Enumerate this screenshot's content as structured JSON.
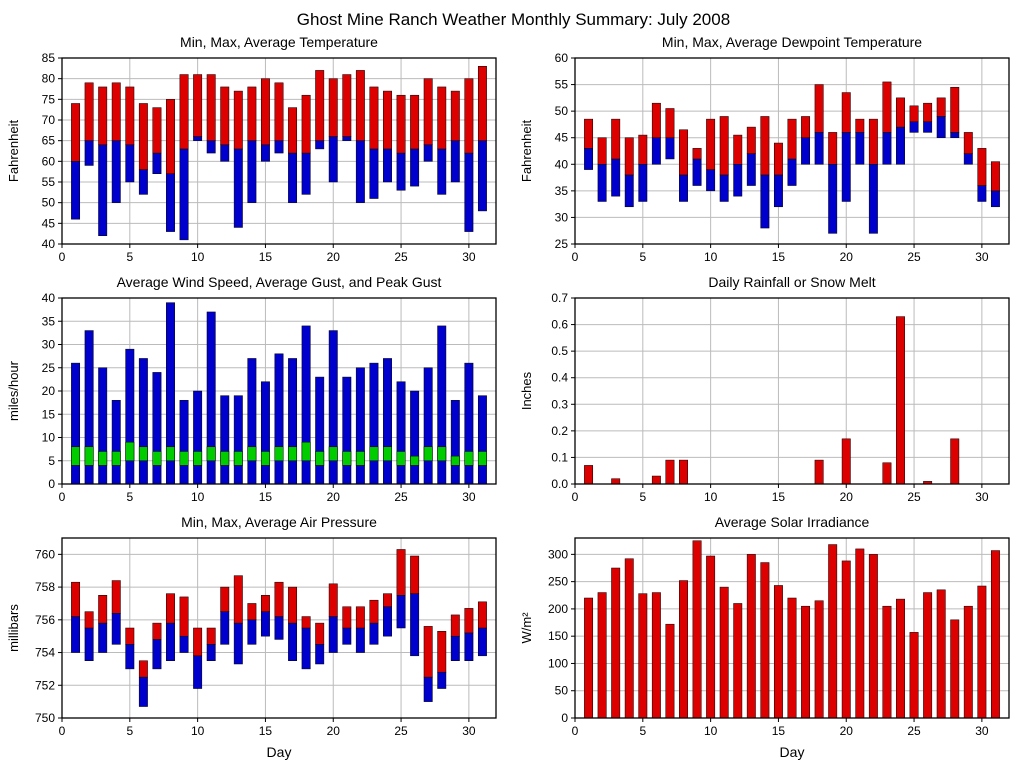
{
  "page": {
    "title": "Ghost Mine Ranch Weather Monthly Summary: July 2008"
  },
  "colors": {
    "red": "#dd0000",
    "blue": "#0000cc",
    "green": "#00cc00",
    "grid": "#bbbbbb",
    "axis": "#000000"
  },
  "chart_data": {
    "x_days": [
      1,
      2,
      3,
      4,
      5,
      6,
      7,
      8,
      9,
      10,
      11,
      12,
      13,
      14,
      15,
      16,
      17,
      18,
      19,
      20,
      21,
      22,
      23,
      24,
      25,
      26,
      27,
      28,
      29,
      30,
      31
    ],
    "charts": [
      {
        "type": "range",
        "title": "Min, Max, Average Temperature",
        "ylabel": "Fahrenheit",
        "xlabel": "",
        "ylim": [
          40,
          85
        ],
        "yticks": [
          40,
          45,
          50,
          55,
          60,
          65,
          70,
          75,
          80,
          85
        ],
        "xlim": [
          0,
          32
        ],
        "xticks": [
          0,
          5,
          10,
          15,
          20,
          25,
          30
        ],
        "ydecimals": 0,
        "data": {
          "min": [
            46,
            59,
            42,
            50,
            55,
            52,
            57,
            43,
            41,
            65,
            62,
            60,
            44,
            50,
            60,
            62,
            50,
            52,
            63,
            55,
            65,
            50,
            51,
            55,
            53,
            54,
            60,
            52,
            55,
            43,
            48
          ],
          "avg": [
            60,
            65,
            64,
            65,
            64,
            58,
            62,
            57,
            63,
            66,
            65,
            64,
            63,
            65,
            64,
            65,
            62,
            62,
            65,
            66,
            66,
            65,
            63,
            63,
            62,
            63,
            64,
            63,
            65,
            62,
            65
          ],
          "max": [
            74,
            79,
            78,
            79,
            78,
            74,
            73,
            75,
            81,
            81,
            81,
            78,
            77,
            78,
            80,
            79,
            73,
            76,
            82,
            80,
            81,
            82,
            78,
            77,
            76,
            76,
            80,
            78,
            77,
            80,
            83
          ]
        }
      },
      {
        "type": "range",
        "title": "Min, Max, Average Dewpoint Temperature",
        "ylabel": "Fahrenheit",
        "xlabel": "",
        "ylim": [
          25,
          60
        ],
        "yticks": [
          25,
          30,
          35,
          40,
          45,
          50,
          55,
          60
        ],
        "xlim": [
          0,
          32
        ],
        "xticks": [
          0,
          5,
          10,
          15,
          20,
          25,
          30
        ],
        "ydecimals": 0,
        "data": {
          "min": [
            39,
            33,
            34,
            32,
            33,
            40,
            41,
            33,
            36,
            35,
            33,
            34,
            36,
            28,
            32,
            36,
            40,
            40,
            27,
            33,
            40,
            27,
            40,
            40,
            46,
            46,
            45,
            45,
            40,
            33,
            32
          ],
          "avg": [
            43,
            40,
            41,
            38,
            40,
            45,
            45,
            38,
            41,
            39,
            38,
            40,
            42,
            38,
            38,
            41,
            45,
            46,
            40,
            46,
            46,
            40,
            46,
            47,
            48,
            48,
            49,
            46,
            42,
            36,
            35
          ],
          "max": [
            48.5,
            45,
            48.5,
            45,
            45.5,
            51.5,
            50.5,
            46.5,
            43,
            48.5,
            49,
            45.5,
            47,
            49,
            44,
            48.5,
            49,
            55,
            46,
            53.5,
            48.5,
            48.5,
            55.5,
            52.5,
            51,
            51.5,
            52.5,
            54.5,
            46,
            43,
            40.5
          ]
        }
      },
      {
        "type": "wind",
        "title": "Average Wind Speed, Average Gust, and Peak Gust",
        "ylabel": "miles/hour",
        "xlabel": "",
        "ylim": [
          0,
          40
        ],
        "yticks": [
          0,
          5,
          10,
          15,
          20,
          25,
          30,
          35,
          40
        ],
        "xlim": [
          0,
          32
        ],
        "xticks": [
          0,
          5,
          10,
          15,
          20,
          25,
          30
        ],
        "ydecimals": 0,
        "data": {
          "avg_wind": [
            4,
            4,
            4,
            4,
            5,
            5,
            4,
            5,
            4,
            4,
            5,
            4,
            4,
            5,
            4,
            5,
            5,
            5,
            4,
            5,
            4,
            4,
            5,
            5,
            4,
            4,
            5,
            5,
            4,
            4,
            4
          ],
          "avg_gust": [
            8,
            8,
            7,
            7,
            9,
            8,
            7,
            8,
            7,
            7,
            8,
            7,
            7,
            8,
            7,
            8,
            8,
            9,
            7,
            8,
            7,
            7,
            8,
            8,
            7,
            6,
            8,
            8,
            6,
            7,
            7
          ],
          "peak_gust": [
            26,
            33,
            25,
            18,
            29,
            27,
            24,
            39,
            18,
            20,
            37,
            19,
            19,
            27,
            22,
            28,
            27,
            34,
            23,
            33,
            23,
            25,
            26,
            27,
            22,
            20,
            25,
            34,
            18,
            26,
            19
          ]
        }
      },
      {
        "type": "bar",
        "title": "Daily Rainfall or Snow Melt",
        "ylabel": "Inches",
        "xlabel": "",
        "ylim": [
          0,
          0.7
        ],
        "yticks": [
          0,
          0.1,
          0.2,
          0.3,
          0.4,
          0.5,
          0.6,
          0.7
        ],
        "xlim": [
          0,
          32
        ],
        "xticks": [
          0,
          5,
          10,
          15,
          20,
          25,
          30
        ],
        "ydecimals": 1,
        "data": {
          "values": [
            0.07,
            0,
            0.02,
            0,
            0,
            0.03,
            0.09,
            0.09,
            0,
            0,
            0,
            0,
            0,
            0,
            0,
            0,
            0,
            0.09,
            0,
            0.17,
            0,
            0,
            0.08,
            0.63,
            0,
            0.01,
            0,
            0.17,
            0,
            0,
            0
          ]
        }
      },
      {
        "type": "range",
        "title": "Min, Max, Average Air Pressure",
        "ylabel": "millibars",
        "xlabel": "Day",
        "ylim": [
          750,
          761
        ],
        "yticks": [
          750,
          752,
          754,
          756,
          758,
          760
        ],
        "xlim": [
          0,
          32
        ],
        "xticks": [
          0,
          5,
          10,
          15,
          20,
          25,
          30
        ],
        "ydecimals": 0,
        "data": {
          "min": [
            754,
            753.5,
            754,
            754.5,
            753,
            750.7,
            753,
            753.5,
            754,
            751.8,
            753.5,
            754.5,
            753.3,
            754.5,
            755,
            754.8,
            753.5,
            753,
            753.3,
            754,
            754.5,
            754,
            754.5,
            755,
            755.5,
            753.8,
            751,
            751.8,
            753.5,
            753.5,
            753.8
          ],
          "avg": [
            756.2,
            755.5,
            755.8,
            756.4,
            754.5,
            752.5,
            754.8,
            755.8,
            755,
            753.8,
            754.5,
            756.5,
            755.8,
            756,
            756.5,
            756.2,
            755.8,
            755.5,
            754.5,
            756.2,
            755.5,
            755.5,
            755.8,
            756.8,
            757.5,
            757.6,
            752.5,
            752.8,
            755,
            755.2,
            755.5
          ],
          "max": [
            758.3,
            756.5,
            757.5,
            758.4,
            755.5,
            753.5,
            755.8,
            757.6,
            757.4,
            755.5,
            755.5,
            758,
            758.7,
            757,
            757.5,
            758.3,
            758,
            756.2,
            755.8,
            758.2,
            756.8,
            756.8,
            757.2,
            757.6,
            760.3,
            759.9,
            755.6,
            755.3,
            756.3,
            756.7,
            757.1
          ]
        }
      },
      {
        "type": "bar",
        "title": "Average Solar Irradiance",
        "ylabel": "W/m²",
        "xlabel": "Day",
        "ylim": [
          0,
          330
        ],
        "yticks": [
          0,
          50,
          100,
          150,
          200,
          250,
          300
        ],
        "xlim": [
          0,
          32
        ],
        "xticks": [
          0,
          5,
          10,
          15,
          20,
          25,
          30
        ],
        "ydecimals": 0,
        "data": {
          "values": [
            220,
            230,
            275,
            292,
            228,
            230,
            172,
            252,
            325,
            297,
            240,
            210,
            300,
            285,
            243,
            220,
            205,
            215,
            318,
            288,
            310,
            300,
            205,
            218,
            157,
            230,
            235,
            180,
            205,
            242,
            307
          ]
        }
      }
    ]
  }
}
